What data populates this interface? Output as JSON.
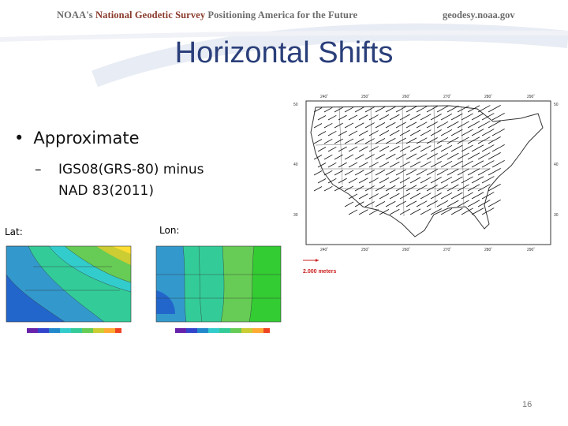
{
  "header": {
    "org_prefix": "NOAA's",
    "org_name": "National Geodetic Survey",
    "tagline": "Positioning America for the Future",
    "website": "geodesy.noaa.gov"
  },
  "slide": {
    "title": "Horizontal Shifts",
    "bullet": "Approximate",
    "sub_bullet_line1": "IGS08(GRS-80) minus",
    "sub_bullet_line2": "NAD 83(2011)",
    "lat_label": "Lat:",
    "lon_label": "Lon:",
    "page_number": "16"
  },
  "vector_map": {
    "lon_ticks": [
      "240˚",
      "250˚",
      "260˚",
      "270˚",
      "280˚",
      "290˚"
    ],
    "lat_ticks": [
      "50",
      "40",
      "30"
    ],
    "scale_label": "2.000 meters"
  },
  "colors": {
    "title": "#2a3f7a",
    "ngs_red": "#8a3a2c",
    "scale_red": "#cc2020"
  }
}
